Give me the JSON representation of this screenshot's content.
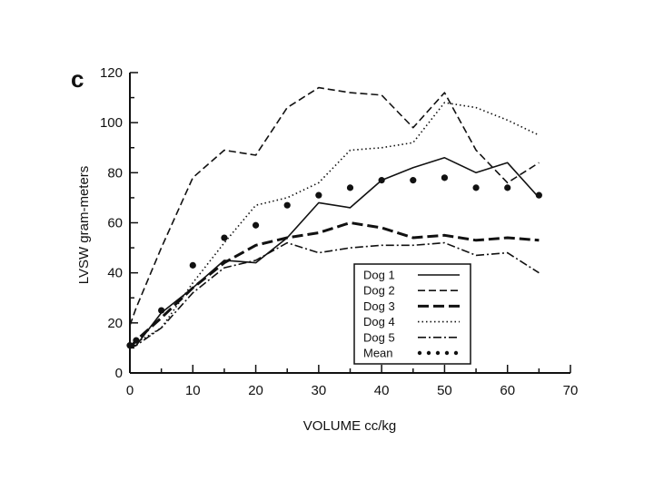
{
  "panel_label": "c",
  "chart_data": {
    "type": "line",
    "xlabel": "VOLUME cc/kg",
    "ylabel": "LVSW gram-meters",
    "xlim": [
      0,
      70
    ],
    "ylim": [
      0,
      120
    ],
    "xticks": [
      0,
      10,
      20,
      30,
      40,
      50,
      60,
      70
    ],
    "yticks": [
      0,
      20,
      40,
      60,
      80,
      100,
      120
    ],
    "x": [
      0,
      1,
      5,
      10,
      15,
      20,
      25,
      30,
      35,
      40,
      45,
      50,
      55,
      60,
      65
    ],
    "legend_position": "lower-right",
    "series": [
      {
        "name": "Dog 1",
        "style": "solid",
        "values": [
          10,
          11,
          24,
          34,
          45,
          44,
          54,
          68,
          66,
          77,
          82,
          86,
          80,
          84,
          70
        ]
      },
      {
        "name": "Dog 2",
        "style": "dashed",
        "values": [
          19,
          26,
          50,
          78,
          89,
          87,
          106,
          114,
          112,
          111,
          98,
          112,
          89,
          76,
          84
        ]
      },
      {
        "name": "Dog 3",
        "style": "longdash",
        "values": [
          10,
          13,
          22,
          34,
          44,
          51,
          54,
          56,
          60,
          58,
          54,
          55,
          53,
          54,
          53
        ]
      },
      {
        "name": "Dog 4",
        "style": "dotted",
        "values": [
          11,
          12,
          18,
          36,
          52,
          67,
          70,
          76,
          89,
          90,
          92,
          108,
          106,
          101,
          95
        ]
      },
      {
        "name": "Dog 5",
        "style": "dashdot",
        "values": [
          11,
          11,
          18,
          32,
          42,
          45,
          52,
          48,
          50,
          51,
          51,
          52,
          47,
          48,
          40
        ]
      },
      {
        "name": "Mean",
        "style": "dots",
        "values": [
          11,
          13,
          25,
          43,
          54,
          59,
          67,
          71,
          74,
          77,
          77,
          78,
          74,
          74,
          71
        ]
      }
    ]
  }
}
